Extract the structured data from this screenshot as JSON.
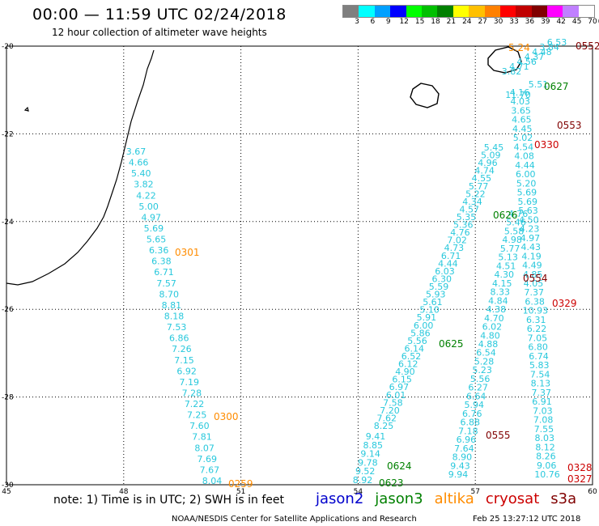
{
  "title": "00:00 — 11:59 UTC 02/24/2018",
  "subtitle": "12 hour collection of altimeter wave heights",
  "legend": {
    "unit": "(ft)",
    "bins": [
      {
        "label": "3",
        "color": "#7f7f7f"
      },
      {
        "label": "6",
        "color": "#00ffff"
      },
      {
        "label": "9",
        "color": "#00a0ff"
      },
      {
        "label": "12",
        "color": "#0000ff"
      },
      {
        "label": "15",
        "color": "#00ff00"
      },
      {
        "label": "18",
        "color": "#00c000"
      },
      {
        "label": "21",
        "color": "#008000"
      },
      {
        "label": "24",
        "color": "#ffff00"
      },
      {
        "label": "27",
        "color": "#ffc000"
      },
      {
        "label": "30",
        "color": "#ff8000"
      },
      {
        "label": "33",
        "color": "#ff0000"
      },
      {
        "label": "36",
        "color": "#c00000"
      },
      {
        "label": "39",
        "color": "#800000"
      },
      {
        "label": "42",
        "color": "#ff00ff"
      },
      {
        "label": "45",
        "color": "#c080ff"
      },
      {
        "label": "70",
        "color": "#ffffff"
      }
    ]
  },
  "axes": {
    "lon_ticks": [
      "45",
      "48",
      "51",
      "54",
      "57",
      "60"
    ],
    "lat_ticks": [
      "-20",
      "-22",
      "-24",
      "-26",
      "-28",
      "-30"
    ]
  },
  "colors": {
    "jason2": "#0000cc",
    "jason3": "#008000",
    "altika": "#ff8c00",
    "cryosat": "#cc0000",
    "s3a": "#800000",
    "cyan": "#28c8dc"
  },
  "tracks": {
    "t1": [
      "3.67",
      "4.66",
      "5.40",
      "3.82",
      "4.22",
      "5.00",
      "4.97",
      "5.69",
      "5.65",
      "6.36",
      "6.38",
      "6.71",
      "7.57",
      "8.70",
      "8.81",
      "8.18",
      "7.53",
      "6.86",
      "7.26",
      "7.15",
      "6.92",
      "7.19",
      "7.28",
      "7.22",
      "7.25",
      "7.60",
      "7.81",
      "8.07",
      "7.69",
      "7.67",
      "8.04"
    ],
    "t2": [
      "9.41",
      "8.85",
      "9.14",
      "9.78",
      "9.52",
      "8.92"
    ],
    "t3": [
      "8.25",
      "7.62",
      "7.20",
      "7.58",
      "6.01",
      "6.97",
      "6.15",
      "4.90",
      "6.12",
      "6.52",
      "6.14",
      "5.56",
      "5.86",
      "6.00",
      "5.91",
      "5.10",
      "5.61",
      "5.93",
      "5.59",
      "6.30",
      "6.03",
      "4.44",
      "6.71",
      "4.73",
      "7.02",
      "4.76",
      "5.36",
      "5.35",
      "4.57",
      "4.34",
      "5.22",
      "5.77",
      "4.55",
      "4.74",
      "4.96",
      "5.09",
      "5.45"
    ],
    "t4": [
      "3.82",
      "4.71",
      "4.56",
      "4.37",
      "4.48",
      "3.84",
      "6.53"
    ],
    "t5": [
      "9.94",
      "9.43",
      "8.90",
      "7.64",
      "6.96",
      "7.18",
      "6.88",
      "6.76",
      "5.94",
      "6.64",
      "6.27",
      "5.56",
      "5.23",
      "5.28",
      "6.54",
      "4.88",
      "4.80",
      "6.02",
      "4.70",
      "4.38",
      "4.84",
      "8.33",
      "4.15",
      "4.30",
      "4.51",
      "5.13",
      "5.77",
      "4.98",
      "5.58",
      "5.46",
      "4.76"
    ],
    "t6": [
      "10.76",
      "9.06",
      "8.26",
      "8.12",
      "8.03",
      "7.55",
      "7.08",
      "7.03",
      "6.91",
      "7.37",
      "8.13",
      "7.54",
      "5.83",
      "6.74",
      "6.80",
      "7.05",
      "6.22",
      "6.31",
      "10.93",
      "6.38",
      "7.37",
      "4.05",
      "4.85",
      "4.49",
      "4.19",
      "4.43",
      "4.97",
      "4.23",
      "4.50",
      "5.63",
      "5.69",
      "5.69",
      "5.20",
      "6.00",
      "4.44",
      "4.08",
      "4.54",
      "5.02",
      "4.45",
      "4.65",
      "3.65",
      "4.03",
      "4.16"
    ]
  },
  "extra_values": [
    "5.51",
    "11.70"
  ],
  "time_labels": [
    {
      "text": "0301",
      "sat": "altika"
    },
    {
      "text": "0300",
      "sat": "altika"
    },
    {
      "text": "0259",
      "sat": "altika"
    },
    {
      "text": "0624",
      "sat": "jason3"
    },
    {
      "text": "0623",
      "sat": "jason3"
    },
    {
      "text": "0625",
      "sat": "jason3"
    },
    {
      "text": "0626",
      "sat": "jason3"
    },
    {
      "text": "0627",
      "sat": "jason3"
    },
    {
      "text": "0552",
      "sat": "s3a"
    },
    {
      "text": "0553",
      "sat": "s3a"
    },
    {
      "text": "0554",
      "sat": "s3a"
    },
    {
      "text": "0555",
      "sat": "s3a"
    },
    {
      "text": "0330",
      "sat": "cryosat"
    },
    {
      "text": "0329",
      "sat": "cryosat"
    },
    {
      "text": "0328",
      "sat": "cryosat"
    },
    {
      "text": "0327",
      "sat": "cryosat"
    },
    {
      "text": "5.24",
      "sat": "altika"
    }
  ],
  "note": "note: 1) Time is in UTC; 2) SWH is in feet",
  "missions": [
    {
      "name": "jason2",
      "color": "#0000cc"
    },
    {
      "name": "jason3",
      "color": "#008000"
    },
    {
      "name": "altika",
      "color": "#ff8c00"
    },
    {
      "name": "cryosat",
      "color": "#cc0000"
    },
    {
      "name": "s3a",
      "color": "#800000"
    }
  ],
  "credit": "NOAA/NESDIS Center for Satellite Applications and Research",
  "timestamp": "Feb 25 13:27:12 UTC 2018"
}
